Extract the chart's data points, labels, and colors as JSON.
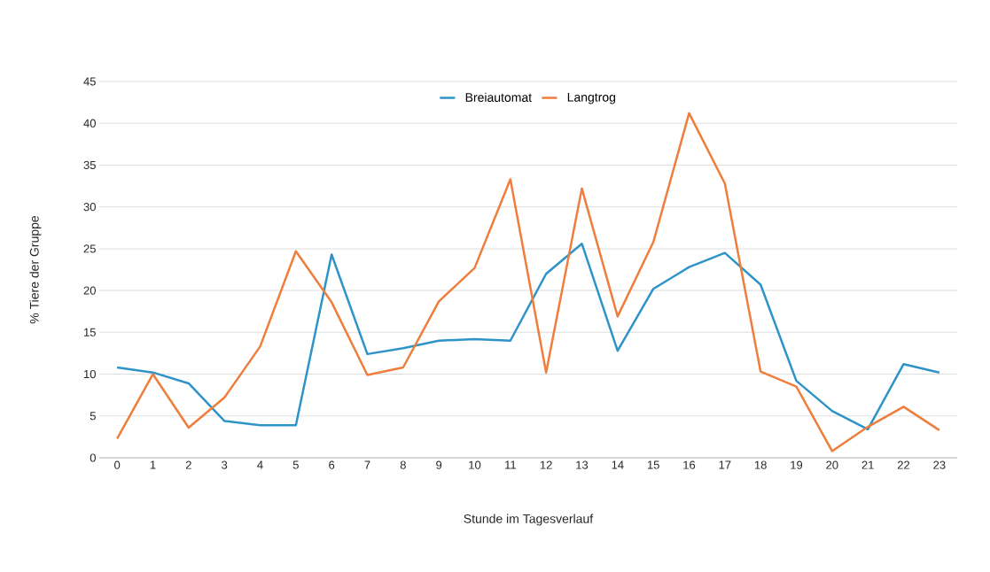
{
  "chart_data": {
    "type": "line",
    "xlabel": "Stunde im Tagesverlauf",
    "ylabel": "% Tiere der Gruppe",
    "categories": [
      "0",
      "1",
      "2",
      "3",
      "4",
      "5",
      "6",
      "7",
      "8",
      "9",
      "10",
      "11",
      "12",
      "13",
      "14",
      "15",
      "16",
      "17",
      "18",
      "19",
      "20",
      "21",
      "22",
      "23"
    ],
    "series": [
      {
        "name": "Breiautomat",
        "color": "#2e93c8",
        "values": [
          10.8,
          10.2,
          8.9,
          4.4,
          3.9,
          3.9,
          24.3,
          12.4,
          13.1,
          14.0,
          14.2,
          14.0,
          22.0,
          25.6,
          12.8,
          20.2,
          22.8,
          24.5,
          20.7,
          9.2,
          5.6,
          3.4,
          11.2,
          10.2
        ]
      },
      {
        "name": "Langtrog",
        "color": "#ef7d3b",
        "values": [
          2.3,
          10.0,
          3.6,
          7.2,
          13.3,
          24.7,
          18.6,
          9.9,
          10.8,
          18.7,
          22.7,
          33.3,
          10.2,
          32.2,
          16.9,
          25.8,
          41.2,
          32.8,
          10.3,
          8.5,
          0.8,
          3.7,
          6.1,
          3.3
        ]
      }
    ],
    "ylim": [
      0,
      45
    ],
    "yticks": [
      0,
      5,
      10,
      15,
      20,
      25,
      30,
      35,
      40,
      45
    ],
    "grid": "y",
    "legend": "top",
    "marker": "none",
    "line_style": "solid"
  }
}
